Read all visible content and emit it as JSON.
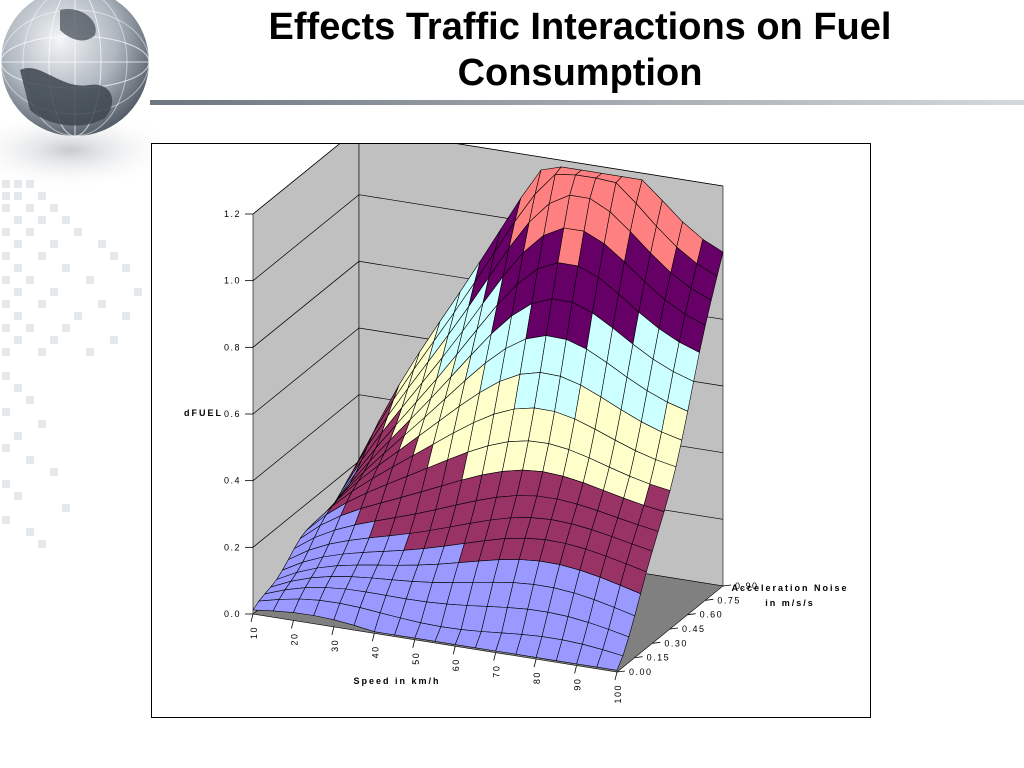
{
  "slide": {
    "title_line1": "Effects Traffic Interactions on Fuel",
    "title_line2": "Consumption"
  },
  "colors": {
    "band_1": "#9999ff",
    "band_2": "#993366",
    "band_3": "#ffffcc",
    "band_4": "#ccffff",
    "band_5": "#660066",
    "band_6": "#ff8080",
    "floor": "#808080",
    "walls": "#c0c0c0"
  },
  "chart_data": {
    "type": "surface",
    "zlabel": "dFUEL",
    "xlabel": "Speed in km/h",
    "ylabel_line1": "Acceleration Noise",
    "ylabel_line2": "in m/s/s",
    "x_ticks": [
      "10",
      "20",
      "30",
      "40",
      "50",
      "60",
      "70",
      "80",
      "90",
      "100"
    ],
    "y_ticks": [
      "0.00",
      "0.15",
      "0.30",
      "0.45",
      "0.60",
      "0.75",
      "0.90"
    ],
    "z_ticks": [
      "0.0",
      "0.2",
      "0.4",
      "0.6",
      "0.8",
      "1.0",
      "1.2"
    ],
    "x_range": [
      10,
      100
    ],
    "y_range": [
      0.0,
      0.9
    ],
    "z_range": [
      0.0,
      1.2
    ],
    "band_bounds": [
      0.0,
      0.2,
      0.4,
      0.6,
      0.8,
      1.0,
      1.2
    ],
    "peak": {
      "speed": 70,
      "acceleration_noise": 0.9,
      "dfuel": 1.15
    }
  }
}
